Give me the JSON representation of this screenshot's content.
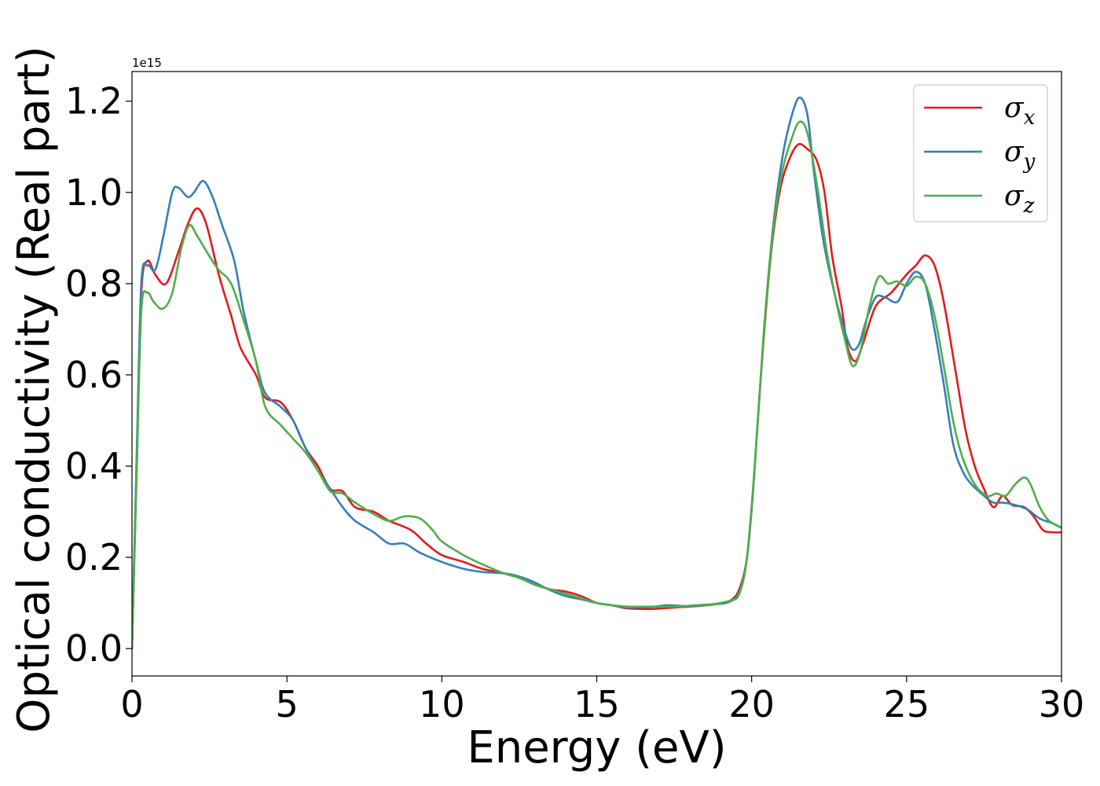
{
  "chart_data": {
    "type": "line",
    "xlabel": "Energy (eV)",
    "ylabel": "Optical conductivity (Real part)",
    "offset_label": "1e15",
    "xlim": [
      0,
      30
    ],
    "ylim": [
      -0.06,
      1.265
    ],
    "xticks": [
      0,
      5,
      10,
      15,
      20,
      25,
      30
    ],
    "yticks": [
      0.0,
      0.2,
      0.4,
      0.6,
      0.8,
      1.0,
      1.2
    ],
    "xtick_labels": [
      "0",
      "5",
      "10",
      "15",
      "20",
      "25",
      "30"
    ],
    "ytick_labels": [
      "0.0",
      "0.2",
      "0.4",
      "0.6",
      "0.8",
      "1.0",
      "1.2"
    ],
    "grid": false,
    "legend_position": "top-right",
    "series": [
      {
        "name": "σx",
        "name_base": "σ",
        "name_sub": "x",
        "color": "#e41a1c",
        "points": [
          [
            0,
            0
          ],
          [
            0.15,
            0.4
          ],
          [
            0.3,
            0.78
          ],
          [
            0.5,
            0.85
          ],
          [
            0.75,
            0.82
          ],
          [
            1.1,
            0.8
          ],
          [
            1.5,
            0.87
          ],
          [
            1.8,
            0.93
          ],
          [
            2.1,
            0.965
          ],
          [
            2.4,
            0.93
          ],
          [
            2.8,
            0.82
          ],
          [
            3.2,
            0.73
          ],
          [
            3.5,
            0.66
          ],
          [
            4.0,
            0.6
          ],
          [
            4.3,
            0.55
          ],
          [
            4.8,
            0.54
          ],
          [
            5.2,
            0.5
          ],
          [
            5.6,
            0.44
          ],
          [
            6.0,
            0.4
          ],
          [
            6.4,
            0.35
          ],
          [
            6.8,
            0.345
          ],
          [
            7.2,
            0.31
          ],
          [
            7.8,
            0.3
          ],
          [
            8.3,
            0.28
          ],
          [
            9.0,
            0.26
          ],
          [
            9.5,
            0.23
          ],
          [
            10.0,
            0.205
          ],
          [
            10.7,
            0.19
          ],
          [
            11.3,
            0.175
          ],
          [
            12.0,
            0.165
          ],
          [
            12.5,
            0.155
          ],
          [
            13.0,
            0.14
          ],
          [
            13.5,
            0.13
          ],
          [
            14.0,
            0.125
          ],
          [
            14.5,
            0.115
          ],
          [
            15.0,
            0.1
          ],
          [
            15.5,
            0.095
          ],
          [
            16.0,
            0.088
          ],
          [
            16.8,
            0.087
          ],
          [
            17.5,
            0.09
          ],
          [
            18.2,
            0.093
          ],
          [
            18.8,
            0.097
          ],
          [
            19.3,
            0.105
          ],
          [
            19.6,
            0.13
          ],
          [
            19.85,
            0.2
          ],
          [
            20.05,
            0.35
          ],
          [
            20.3,
            0.6
          ],
          [
            20.6,
            0.85
          ],
          [
            20.9,
            1.0
          ],
          [
            21.2,
            1.07
          ],
          [
            21.5,
            1.105
          ],
          [
            21.8,
            1.095
          ],
          [
            22.1,
            1.07
          ],
          [
            22.35,
            1.0
          ],
          [
            22.6,
            0.86
          ],
          [
            22.9,
            0.75
          ],
          [
            23.1,
            0.66
          ],
          [
            23.35,
            0.63
          ],
          [
            23.6,
            0.67
          ],
          [
            24.0,
            0.75
          ],
          [
            24.5,
            0.78
          ],
          [
            25.0,
            0.82
          ],
          [
            25.3,
            0.84
          ],
          [
            25.6,
            0.862
          ],
          [
            25.9,
            0.84
          ],
          [
            26.2,
            0.76
          ],
          [
            26.6,
            0.6
          ],
          [
            26.9,
            0.48
          ],
          [
            27.2,
            0.4
          ],
          [
            27.5,
            0.35
          ],
          [
            27.8,
            0.31
          ],
          [
            28.1,
            0.335
          ],
          [
            28.4,
            0.315
          ],
          [
            28.8,
            0.31
          ],
          [
            29.1,
            0.29
          ],
          [
            29.4,
            0.26
          ],
          [
            29.7,
            0.255
          ],
          [
            30.0,
            0.255
          ]
        ]
      },
      {
        "name": "σy",
        "name_base": "σ",
        "name_sub": "y",
        "color": "#377eb8",
        "points": [
          [
            0,
            0
          ],
          [
            0.15,
            0.42
          ],
          [
            0.3,
            0.8
          ],
          [
            0.5,
            0.84
          ],
          [
            0.75,
            0.83
          ],
          [
            1.0,
            0.9
          ],
          [
            1.3,
            1.0
          ],
          [
            1.5,
            1.01
          ],
          [
            1.8,
            0.99
          ],
          [
            2.0,
            1.0
          ],
          [
            2.3,
            1.025
          ],
          [
            2.6,
            0.99
          ],
          [
            2.9,
            0.93
          ],
          [
            3.3,
            0.85
          ],
          [
            3.6,
            0.74
          ],
          [
            4.0,
            0.63
          ],
          [
            4.3,
            0.56
          ],
          [
            4.8,
            0.53
          ],
          [
            5.2,
            0.5
          ],
          [
            5.6,
            0.44
          ],
          [
            6.0,
            0.39
          ],
          [
            6.4,
            0.35
          ],
          [
            6.8,
            0.31
          ],
          [
            7.2,
            0.28
          ],
          [
            7.8,
            0.255
          ],
          [
            8.3,
            0.23
          ],
          [
            8.8,
            0.23
          ],
          [
            9.3,
            0.21
          ],
          [
            10.0,
            0.19
          ],
          [
            10.7,
            0.175
          ],
          [
            11.3,
            0.168
          ],
          [
            12.0,
            0.165
          ],
          [
            12.5,
            0.158
          ],
          [
            13.0,
            0.145
          ],
          [
            13.5,
            0.128
          ],
          [
            14.0,
            0.115
          ],
          [
            14.5,
            0.108
          ],
          [
            15.0,
            0.1
          ],
          [
            15.5,
            0.095
          ],
          [
            16.0,
            0.09
          ],
          [
            16.8,
            0.092
          ],
          [
            17.3,
            0.095
          ],
          [
            18.0,
            0.093
          ],
          [
            18.8,
            0.097
          ],
          [
            19.3,
            0.103
          ],
          [
            19.6,
            0.125
          ],
          [
            19.85,
            0.2
          ],
          [
            20.1,
            0.4
          ],
          [
            20.4,
            0.7
          ],
          [
            20.7,
            0.93
          ],
          [
            21.0,
            1.08
          ],
          [
            21.3,
            1.17
          ],
          [
            21.55,
            1.208
          ],
          [
            21.8,
            1.17
          ],
          [
            22.0,
            1.05
          ],
          [
            22.3,
            0.9
          ],
          [
            22.6,
            0.8
          ],
          [
            22.9,
            0.72
          ],
          [
            23.2,
            0.66
          ],
          [
            23.45,
            0.665
          ],
          [
            23.7,
            0.72
          ],
          [
            24.0,
            0.77
          ],
          [
            24.3,
            0.77
          ],
          [
            24.7,
            0.76
          ],
          [
            25.0,
            0.8
          ],
          [
            25.3,
            0.826
          ],
          [
            25.6,
            0.8
          ],
          [
            25.9,
            0.7
          ],
          [
            26.2,
            0.58
          ],
          [
            26.5,
            0.45
          ],
          [
            26.8,
            0.39
          ],
          [
            27.1,
            0.36
          ],
          [
            27.5,
            0.335
          ],
          [
            27.8,
            0.32
          ],
          [
            28.1,
            0.32
          ],
          [
            28.5,
            0.315
          ],
          [
            28.9,
            0.305
          ],
          [
            29.3,
            0.285
          ],
          [
            29.7,
            0.275
          ],
          [
            30.0,
            0.265
          ]
        ]
      },
      {
        "name": "σz",
        "name_base": "σ",
        "name_sub": "z",
        "color": "#4daf4a",
        "points": [
          [
            0,
            0
          ],
          [
            0.15,
            0.38
          ],
          [
            0.3,
            0.74
          ],
          [
            0.5,
            0.78
          ],
          [
            0.7,
            0.76
          ],
          [
            1.0,
            0.745
          ],
          [
            1.3,
            0.78
          ],
          [
            1.6,
            0.88
          ],
          [
            1.85,
            0.928
          ],
          [
            2.1,
            0.905
          ],
          [
            2.5,
            0.86
          ],
          [
            2.8,
            0.83
          ],
          [
            3.2,
            0.8
          ],
          [
            3.6,
            0.72
          ],
          [
            4.0,
            0.63
          ],
          [
            4.3,
            0.53
          ],
          [
            4.8,
            0.49
          ],
          [
            5.2,
            0.46
          ],
          [
            5.6,
            0.43
          ],
          [
            6.0,
            0.39
          ],
          [
            6.4,
            0.345
          ],
          [
            6.8,
            0.34
          ],
          [
            7.2,
            0.32
          ],
          [
            7.8,
            0.295
          ],
          [
            8.3,
            0.28
          ],
          [
            8.8,
            0.29
          ],
          [
            9.3,
            0.285
          ],
          [
            9.7,
            0.26
          ],
          [
            10.0,
            0.235
          ],
          [
            10.7,
            0.205
          ],
          [
            11.3,
            0.185
          ],
          [
            12.0,
            0.165
          ],
          [
            12.5,
            0.155
          ],
          [
            13.0,
            0.14
          ],
          [
            13.5,
            0.13
          ],
          [
            14.0,
            0.12
          ],
          [
            14.5,
            0.11
          ],
          [
            15.0,
            0.1
          ],
          [
            15.5,
            0.095
          ],
          [
            16.0,
            0.092
          ],
          [
            16.8,
            0.092
          ],
          [
            17.5,
            0.092
          ],
          [
            18.2,
            0.095
          ],
          [
            18.8,
            0.098
          ],
          [
            19.3,
            0.105
          ],
          [
            19.6,
            0.12
          ],
          [
            19.85,
            0.2
          ],
          [
            20.1,
            0.4
          ],
          [
            20.4,
            0.7
          ],
          [
            20.7,
            0.92
          ],
          [
            21.0,
            1.05
          ],
          [
            21.3,
            1.12
          ],
          [
            21.55,
            1.155
          ],
          [
            21.8,
            1.13
          ],
          [
            22.1,
            1.02
          ],
          [
            22.4,
            0.88
          ],
          [
            22.7,
            0.77
          ],
          [
            23.0,
            0.68
          ],
          [
            23.25,
            0.62
          ],
          [
            23.5,
            0.65
          ],
          [
            23.8,
            0.75
          ],
          [
            24.1,
            0.815
          ],
          [
            24.4,
            0.8
          ],
          [
            24.7,
            0.805
          ],
          [
            25.0,
            0.795
          ],
          [
            25.3,
            0.815
          ],
          [
            25.6,
            0.8
          ],
          [
            25.9,
            0.73
          ],
          [
            26.2,
            0.62
          ],
          [
            26.5,
            0.5
          ],
          [
            26.8,
            0.42
          ],
          [
            27.2,
            0.36
          ],
          [
            27.6,
            0.335
          ],
          [
            27.9,
            0.34
          ],
          [
            28.2,
            0.335
          ],
          [
            28.5,
            0.36
          ],
          [
            28.8,
            0.375
          ],
          [
            29.0,
            0.36
          ],
          [
            29.3,
            0.31
          ],
          [
            29.6,
            0.28
          ],
          [
            30.0,
            0.265
          ]
        ]
      }
    ]
  }
}
